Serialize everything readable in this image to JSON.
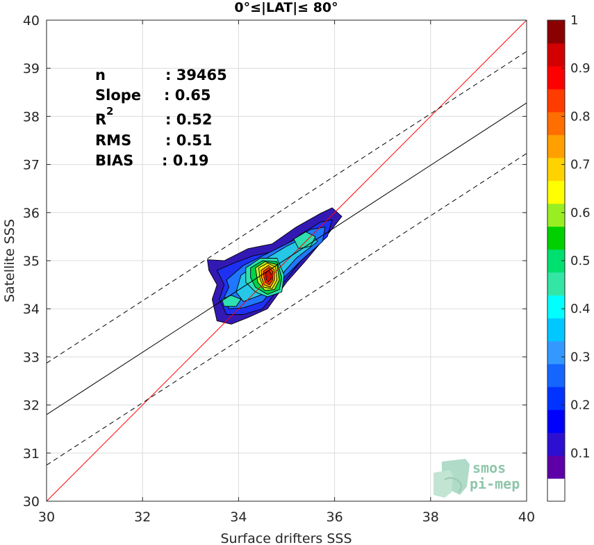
{
  "chart_data": {
    "type": "contour",
    "title": "0°≤|LAT|≤ 80°",
    "xlabel": "Surface drifters SSS",
    "ylabel": "Satellite SSS",
    "xlim": [
      30,
      40
    ],
    "ylim": [
      30,
      40
    ],
    "xticks": [
      30,
      32,
      34,
      36,
      38,
      40
    ],
    "yticks": [
      30,
      31,
      32,
      33,
      34,
      35,
      36,
      37,
      38,
      39,
      40
    ],
    "grid": true,
    "stats": {
      "n": {
        "label": "n",
        "value": ": 39465"
      },
      "slope": {
        "label": "Slope",
        "value": ": 0.65"
      },
      "r2": {
        "label": "R",
        "sup": "2",
        "value": ": 0.52"
      },
      "rms": {
        "label": "RMS",
        "value": ": 0.51"
      },
      "bias": {
        "label": "BIAS",
        "value": ": 0.19"
      }
    },
    "lines": [
      {
        "name": "identity",
        "color": "#ff0000",
        "x": [
          30,
          40
        ],
        "y": [
          30,
          40
        ]
      },
      {
        "name": "regression",
        "color": "#000000",
        "style": "solid",
        "x": [
          30,
          40
        ],
        "y": [
          31.8,
          38.28
        ]
      },
      {
        "name": "regression-upper",
        "color": "#000000",
        "style": "dashed",
        "x": [
          30,
          40
        ],
        "y": [
          32.87,
          39.35
        ]
      },
      {
        "name": "regression-lower",
        "color": "#000000",
        "style": "dashed",
        "x": [
          30,
          40
        ],
        "y": [
          30.75,
          37.23
        ]
      }
    ],
    "density_peak": {
      "x": 34.62,
      "y": 34.7
    },
    "secondary_peaks": [
      {
        "x": 35.4,
        "y": 35.4
      },
      {
        "x": 33.8,
        "y": 34.15
      }
    ],
    "colorbar": {
      "range": [
        0,
        1
      ],
      "ticks": [
        "0.1",
        "0.2",
        "0.3",
        "0.4",
        "0.5",
        "0.6",
        "0.7",
        "0.8",
        "0.9",
        "1"
      ],
      "colors": [
        "#ffffff",
        "#5e00a8",
        "#2d0fd2",
        "#0000ff",
        "#0033ff",
        "#1466ff",
        "#3399ff",
        "#00c8ff",
        "#00ffff",
        "#33e6a6",
        "#00e070",
        "#00d000",
        "#99ee22",
        "#ffff00",
        "#ffd200",
        "#ffa000",
        "#ff6e00",
        "#ff3c00",
        "#ff0000",
        "#d20000",
        "#8b0000"
      ]
    },
    "levels": [
      {
        "color": "#3319b4",
        "points": [
          [
            33.35,
            35.02
          ],
          [
            33.7,
            35.0
          ],
          [
            34.2,
            35.25
          ],
          [
            34.7,
            35.35
          ],
          [
            35.2,
            35.7
          ],
          [
            35.7,
            35.98
          ],
          [
            35.95,
            36.1
          ],
          [
            36.15,
            35.92
          ],
          [
            35.9,
            35.6
          ],
          [
            35.4,
            35.0
          ],
          [
            35.0,
            34.55
          ],
          [
            34.6,
            34.0
          ],
          [
            34.2,
            33.82
          ],
          [
            33.85,
            33.68
          ],
          [
            33.55,
            33.75
          ],
          [
            33.45,
            34.2
          ],
          [
            33.55,
            34.5
          ],
          [
            33.38,
            34.8
          ]
        ]
      },
      {
        "color": "#1e30f2",
        "points": [
          [
            33.55,
            34.8
          ],
          [
            33.9,
            34.95
          ],
          [
            34.3,
            35.1
          ],
          [
            34.8,
            35.2
          ],
          [
            35.3,
            35.55
          ],
          [
            35.7,
            35.8
          ],
          [
            35.95,
            35.85
          ],
          [
            35.85,
            35.5
          ],
          [
            35.3,
            35.0
          ],
          [
            34.9,
            34.5
          ],
          [
            34.5,
            34.0
          ],
          [
            34.1,
            33.88
          ],
          [
            33.75,
            33.88
          ],
          [
            33.6,
            34.2
          ],
          [
            33.7,
            34.5
          ]
        ]
      },
      {
        "color": "#1f78ff",
        "points": [
          [
            33.75,
            34.6
          ],
          [
            34.1,
            34.9
          ],
          [
            34.6,
            35.15
          ],
          [
            35.1,
            35.4
          ],
          [
            35.5,
            35.65
          ],
          [
            35.8,
            35.7
          ],
          [
            35.75,
            35.4
          ],
          [
            35.3,
            35.0
          ],
          [
            34.85,
            34.55
          ],
          [
            34.5,
            34.15
          ],
          [
            34.1,
            34.02
          ],
          [
            33.8,
            34.0
          ],
          [
            33.7,
            34.25
          ],
          [
            33.8,
            34.45
          ]
        ]
      },
      {
        "color": "#26c6e6",
        "points": [
          [
            34.05,
            34.7
          ],
          [
            34.5,
            35.0
          ],
          [
            35.0,
            35.3
          ],
          [
            35.5,
            35.55
          ],
          [
            35.65,
            35.4
          ],
          [
            35.2,
            35.05
          ],
          [
            34.8,
            34.6
          ],
          [
            34.5,
            34.3
          ],
          [
            34.1,
            34.15
          ],
          [
            33.95,
            34.35
          ]
        ]
      },
      {
        "color": "#2fe0b0",
        "points": [
          [
            34.15,
            34.85
          ],
          [
            34.45,
            35.05
          ],
          [
            34.8,
            35.05
          ],
          [
            34.95,
            34.7
          ],
          [
            34.9,
            34.35
          ],
          [
            34.6,
            34.25
          ],
          [
            34.35,
            34.35
          ],
          [
            34.15,
            34.55
          ]
        ]
      },
      {
        "color": "#2fe0b0",
        "points": [
          [
            35.15,
            35.45
          ],
          [
            35.4,
            35.6
          ],
          [
            35.6,
            35.5
          ],
          [
            35.5,
            35.3
          ],
          [
            35.25,
            35.25
          ]
        ]
      },
      {
        "color": "#2fe0b0",
        "points": [
          [
            33.65,
            34.2
          ],
          [
            33.85,
            34.28
          ],
          [
            34.05,
            34.2
          ],
          [
            33.95,
            34.05
          ],
          [
            33.7,
            34.05
          ]
        ]
      },
      {
        "color": "#00d24a",
        "points": [
          [
            34.25,
            34.85
          ],
          [
            34.5,
            35.0
          ],
          [
            34.8,
            34.98
          ],
          [
            34.9,
            34.65
          ],
          [
            34.85,
            34.4
          ],
          [
            34.6,
            34.3
          ],
          [
            34.35,
            34.45
          ],
          [
            34.25,
            34.65
          ]
        ]
      },
      {
        "color": "#b9ee2a",
        "points": [
          [
            34.35,
            34.85
          ],
          [
            34.55,
            34.98
          ],
          [
            34.8,
            34.92
          ],
          [
            34.85,
            34.6
          ],
          [
            34.75,
            34.4
          ],
          [
            34.55,
            34.38
          ],
          [
            34.4,
            34.55
          ]
        ]
      },
      {
        "color": "#ffe600",
        "points": [
          [
            34.42,
            34.85
          ],
          [
            34.6,
            34.95
          ],
          [
            34.77,
            34.87
          ],
          [
            34.8,
            34.6
          ],
          [
            34.7,
            34.42
          ],
          [
            34.52,
            34.45
          ],
          [
            34.45,
            34.62
          ]
        ]
      },
      {
        "color": "#ff9600",
        "points": [
          [
            34.47,
            34.8
          ],
          [
            34.62,
            34.9
          ],
          [
            34.74,
            34.82
          ],
          [
            34.75,
            34.6
          ],
          [
            34.66,
            34.45
          ],
          [
            34.53,
            34.5
          ],
          [
            34.48,
            34.65
          ]
        ]
      },
      {
        "color": "#ff3200",
        "points": [
          [
            34.52,
            34.78
          ],
          [
            34.63,
            34.86
          ],
          [
            34.71,
            34.78
          ],
          [
            34.71,
            34.6
          ],
          [
            34.64,
            34.5
          ],
          [
            34.56,
            34.55
          ],
          [
            34.53,
            34.66
          ]
        ]
      },
      {
        "color": "#c81400",
        "points": [
          [
            34.56,
            34.74
          ],
          [
            34.63,
            34.8
          ],
          [
            34.68,
            34.73
          ],
          [
            34.68,
            34.62
          ],
          [
            34.62,
            34.56
          ],
          [
            34.58,
            34.6
          ]
        ]
      }
    ],
    "logo": {
      "line1": "smos",
      "line2": "pi-mep"
    }
  }
}
